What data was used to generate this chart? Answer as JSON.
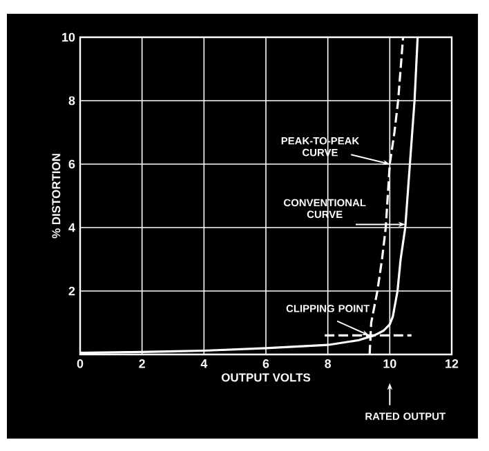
{
  "chart_data": {
    "type": "line",
    "xlabel": "OUTPUT VOLTS",
    "ylabel": "% DISTORTION",
    "xlim": [
      0,
      12
    ],
    "ylim": [
      0,
      10
    ],
    "xticks": [
      0,
      2,
      4,
      6,
      8,
      10,
      12
    ],
    "yticks": [
      2,
      4,
      6,
      8,
      10
    ],
    "grid": true,
    "series": [
      {
        "color": "#ffffff",
        "line_style": "solid",
        "x": [
          0,
          2,
          4,
          6,
          8,
          9,
          9.5,
          9.8,
          10,
          10.1,
          10.25,
          10.35,
          10.5,
          10.65,
          10.8,
          10.9
        ],
        "values": [
          0.05,
          0.08,
          0.12,
          0.2,
          0.3,
          0.45,
          0.6,
          0.75,
          0.95,
          1.2,
          2,
          3,
          4,
          6,
          8,
          10
        ]
      },
      {
        "color": "#ffffff",
        "line_style": "dashed",
        "x": [
          9.35,
          9.4,
          9.6,
          9.75,
          9.87,
          10,
          10.15,
          10.27,
          10.43
        ],
        "values": [
          0,
          1,
          2,
          3,
          4,
          6,
          7,
          8,
          10
        ]
      },
      {
        "color": "#ffffff",
        "line_style": "dashed",
        "x": [
          7.9,
          10.7
        ],
        "values": [
          0.6,
          0.6
        ]
      }
    ],
    "annotations": [
      {
        "text": "PEAK-TO-PEAK CURVE",
        "x": 10,
        "y": 6
      },
      {
        "text": "CONVENTIONAL CURVE",
        "x": 10.5,
        "y": 4.1
      },
      {
        "text": "CLIPPING POINT",
        "x": 9.33,
        "y": 0.6
      },
      "RATED OUTPUT"
    ]
  }
}
